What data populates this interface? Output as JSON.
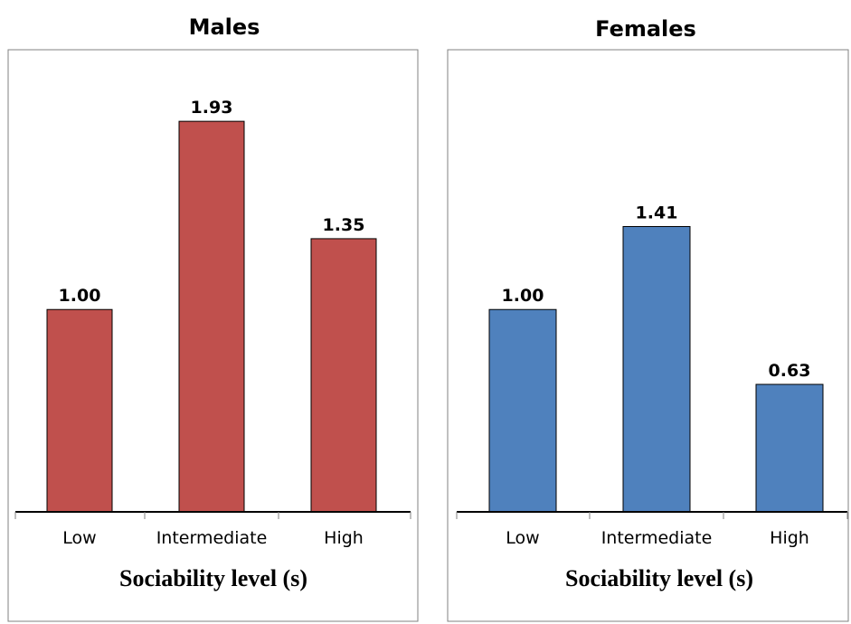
{
  "chart_data": [
    {
      "type": "bar",
      "title": "Males",
      "categories": [
        "Low",
        "Intermediate",
        "High"
      ],
      "values": [
        1.0,
        1.93,
        1.35
      ],
      "data_labels": [
        "1.00",
        "1.93",
        "1.35"
      ],
      "xlabel": "Sociability level (s)",
      "ylabel": "",
      "ylim": [
        0,
        2.02
      ],
      "grid": false,
      "color": "#c0504d"
    },
    {
      "type": "bar",
      "title": "Females",
      "categories": [
        "Low",
        "Intermediate",
        "High"
      ],
      "values": [
        1.0,
        1.41,
        0.63
      ],
      "data_labels": [
        "1.00",
        "1.41",
        "0.63"
      ],
      "xlabel": "Sociability level (s)",
      "ylabel": "",
      "ylim": [
        0,
        2.02
      ],
      "grid": false,
      "color": "#4f81bd"
    }
  ]
}
